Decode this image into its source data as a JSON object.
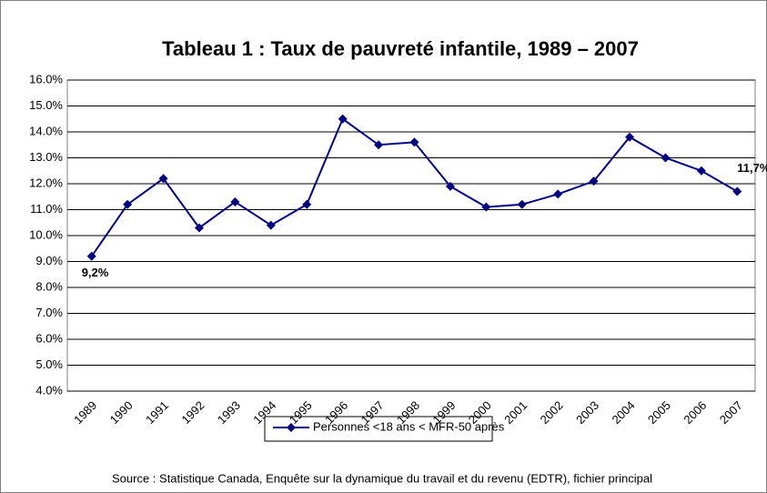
{
  "chart_data": {
    "type": "line",
    "title": "Tableau 1 : Taux de pauvreté infantile, 1989 – 2007",
    "categories": [
      "1989",
      "1990",
      "1991",
      "1992",
      "1993",
      "1994",
      "1995",
      "1996",
      "1997",
      "1998",
      "1999",
      "2000",
      "2001",
      "2002",
      "2003",
      "2004",
      "2005",
      "2006",
      "2007"
    ],
    "series": [
      {
        "name": "Personnes <18 ans < MFR-50 après",
        "color": "#000080",
        "values": [
          9.2,
          11.2,
          12.2,
          10.3,
          11.3,
          10.4,
          11.2,
          14.5,
          13.5,
          13.6,
          11.9,
          11.1,
          11.2,
          11.6,
          12.1,
          13.8,
          13.0,
          12.5,
          11.7
        ],
        "value_labels": [
          "9,2%",
          null,
          null,
          null,
          null,
          null,
          null,
          null,
          null,
          null,
          null,
          null,
          null,
          null,
          null,
          null,
          null,
          null,
          "11,7%"
        ]
      }
    ],
    "ylim": [
      4,
      16
    ],
    "yticks": [
      {
        "value": 4,
        "label": "4.0%"
      },
      {
        "value": 5,
        "label": "5.0%"
      },
      {
        "value": 6,
        "label": "6.0%"
      },
      {
        "value": 7,
        "label": "7.0%"
      },
      {
        "value": 8,
        "label": "8.0%"
      },
      {
        "value": 9,
        "label": "9.0%"
      },
      {
        "value": 10,
        "label": "10.0%"
      },
      {
        "value": 11,
        "label": "11.0%"
      },
      {
        "value": 12,
        "label": "12.0%"
      },
      {
        "value": 13,
        "label": "13.0%"
      },
      {
        "value": 14,
        "label": "14.0%"
      },
      {
        "value": 15,
        "label": "15.0%"
      },
      {
        "value": 16,
        "label": "16.0%"
      }
    ],
    "grid": true,
    "legend": "bottom",
    "source": "Source : Statistique Canada, Enquête sur la dynamique du travail et du revenu (EDTR), fichier principal"
  }
}
